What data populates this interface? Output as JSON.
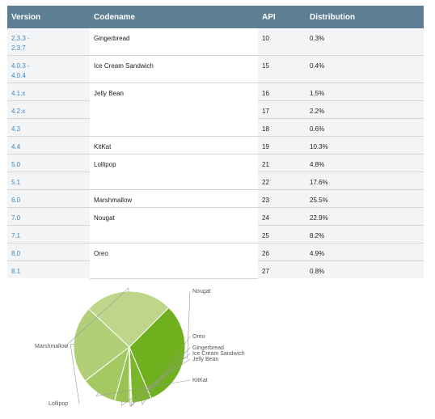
{
  "table": {
    "headers": {
      "version": "Version",
      "codename": "Codename",
      "api": "API",
      "distribution": "Distribution"
    },
    "rows": [
      {
        "version": "2.3.3 -\n2.3.7",
        "codename": "Gingerbread",
        "api": "10",
        "distribution": "0.3%"
      },
      {
        "version": "4.0.3 -\n4.0.4",
        "codename": "Ice Cream Sandwich",
        "api": "15",
        "distribution": "0.4%"
      },
      {
        "version": "4.1.x",
        "codename": "Jelly Bean",
        "api": "16",
        "distribution": "1.5%"
      },
      {
        "version": "4.2.x",
        "codename": "",
        "api": "17",
        "distribution": "2.2%"
      },
      {
        "version": "4.3",
        "codename": "",
        "api": "18",
        "distribution": "0.6%"
      },
      {
        "version": "4.4",
        "codename": "KitKat",
        "api": "19",
        "distribution": "10.3%"
      },
      {
        "version": "5.0",
        "codename": "Lollipop",
        "api": "21",
        "distribution": "4.8%"
      },
      {
        "version": "5.1",
        "codename": "",
        "api": "22",
        "distribution": "17.6%"
      },
      {
        "version": "6.0",
        "codename": "Marshmallow",
        "api": "23",
        "distribution": "25.5%"
      },
      {
        "version": "7.0",
        "codename": "Nougat",
        "api": "24",
        "distribution": "22.9%"
      },
      {
        "version": "7.1",
        "codename": "",
        "api": "25",
        "distribution": "8.2%"
      },
      {
        "version": "8.0",
        "codename": "Oreo",
        "api": "26",
        "distribution": "4.9%"
      },
      {
        "version": "8.1",
        "codename": "",
        "api": "27",
        "distribution": "0.8%"
      }
    ]
  },
  "colors": {
    "header_bg": "#5d7f93",
    "version_link": "#3a87c5",
    "pie": [
      "#70b01f",
      "#7ab52a",
      "#83b935",
      "#8dbe42",
      "#98c352",
      "#a4c963",
      "#b0cf76",
      "#bdd68a"
    ]
  },
  "chart_data": {
    "type": "pie",
    "title": "",
    "labels": [
      "Nougat",
      "Oreo",
      "Gingerbread",
      "Ice Cream Sandwich",
      "Jelly Bean",
      "KitKat",
      "Lollipop",
      "Marshmallow"
    ],
    "values": [
      31.1,
      5.7,
      0.3,
      0.4,
      4.3,
      10.3,
      22.4,
      25.5
    ]
  }
}
